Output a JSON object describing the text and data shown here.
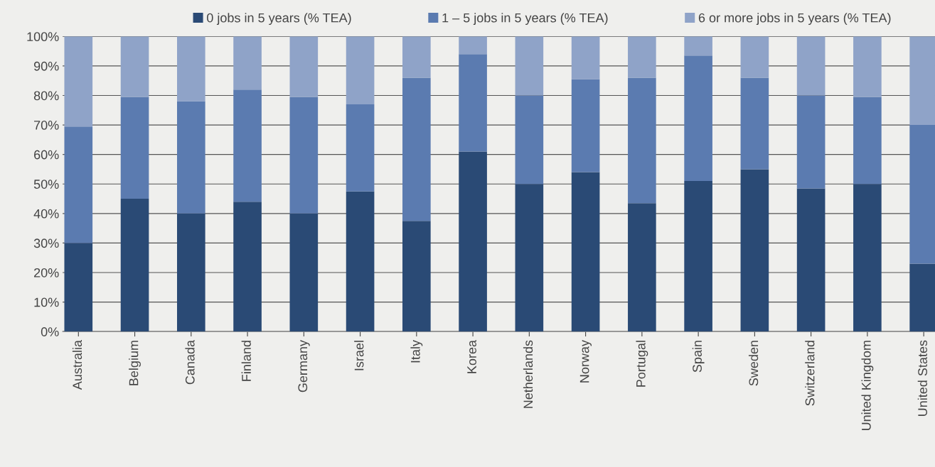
{
  "chart_data": {
    "type": "bar",
    "stacked": true,
    "categories": [
      "Australia",
      "Belgium",
      "Canada",
      "Finland",
      "Germany",
      "Israel",
      "Italy",
      "Korea",
      "Netherlands",
      "Norway",
      "Portugal",
      "Spain",
      "Sweden",
      "Switzerland",
      "United Kingdom",
      "United States"
    ],
    "series": [
      {
        "name": "0 jobs in 5 years (% TEA)",
        "color": "#2a4a75",
        "values": [
          30,
          45,
          40,
          44,
          40,
          47.5,
          37.5,
          61,
          50,
          54,
          43.5,
          51,
          55,
          48.5,
          50,
          23
        ]
      },
      {
        "name": "1 – 5 jobs in 5 years (% TEA)",
        "color": "#5b7bb0",
        "values": [
          39.5,
          34.5,
          38,
          38,
          39.5,
          29.5,
          48.5,
          33,
          30,
          31.5,
          42.5,
          42.5,
          31,
          31.5,
          29.5,
          47
        ]
      },
      {
        "name": "6 or more jobs in 5 years (% TEA)",
        "color": "#8fa3c8",
        "values": [
          30.5,
          20.5,
          22,
          18,
          20.5,
          23,
          14,
          6,
          20,
          14.5,
          14,
          6.5,
          14,
          20,
          20.5,
          30
        ]
      }
    ],
    "ylim": [
      0,
      100
    ],
    "yticks": [
      {
        "value": 0,
        "label": "0%"
      },
      {
        "value": 10,
        "label": "10%"
      },
      {
        "value": 20,
        "label": "20%"
      },
      {
        "value": 30,
        "label": "30%"
      },
      {
        "value": 40,
        "label": "40%"
      },
      {
        "value": 50,
        "label": "50%"
      },
      {
        "value": 60,
        "label": "60%"
      },
      {
        "value": 70,
        "label": "70%"
      },
      {
        "value": 80,
        "label": "80%"
      },
      {
        "value": 90,
        "label": "90%"
      },
      {
        "value": 100,
        "label": "100%"
      }
    ],
    "grid": "y",
    "legend": "top"
  }
}
